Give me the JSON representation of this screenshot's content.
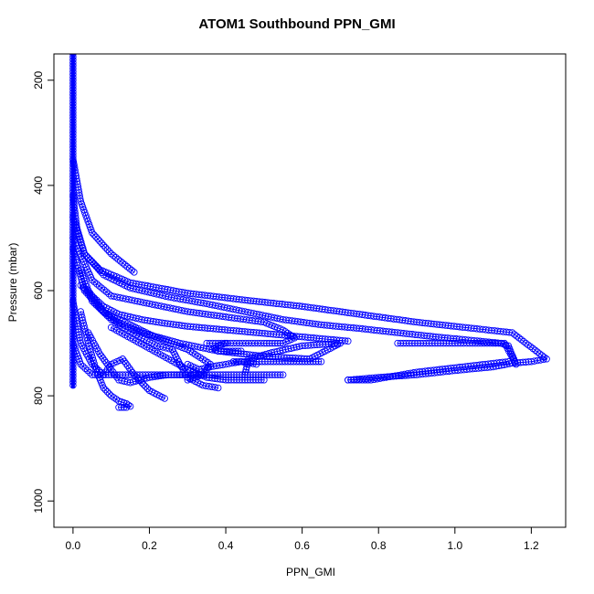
{
  "chart_data": {
    "type": "scatter",
    "title": "ATOM1 Southbound PPN_GMI",
    "xlabel": "PPN_GMI",
    "ylabel": "Pressure (mbar)",
    "xlim": [
      -0.05,
      1.29
    ],
    "ylim": [
      1050,
      150
    ],
    "y_reversed": true,
    "xticks": [
      0.0,
      0.2,
      0.4,
      0.6,
      0.8,
      1.0,
      1.2
    ],
    "xtick_labels": [
      "0.0",
      "0.2",
      "0.4",
      "0.6",
      "0.8",
      "1.0",
      "1.2"
    ],
    "yticks": [
      200,
      400,
      600,
      800,
      1000
    ],
    "ytick_labels": [
      "200",
      "400",
      "600",
      "800",
      "1000"
    ],
    "marker": "open-circle",
    "connect_points": true,
    "color": "#0000ff",
    "grid": false,
    "series": [
      {
        "x": [
          0.0,
          0.0,
          0.0,
          0.0,
          0.0,
          0.0,
          0.0
        ],
        "y": [
          150,
          250,
          350,
          450,
          550,
          650,
          780
        ]
      },
      {
        "x": [
          0.0,
          0.02,
          0.05,
          0.1,
          0.16
        ],
        "y": [
          350,
          430,
          490,
          530,
          565
        ]
      },
      {
        "x": [
          0.0,
          0.01,
          0.03,
          0.07,
          0.15,
          0.3,
          0.45,
          0.6,
          0.75,
          0.9,
          1.05,
          1.15,
          1.24,
          1.2,
          1.15,
          1.1,
          1.0,
          0.9,
          0.8,
          0.72
        ],
        "y": [
          420,
          480,
          530,
          560,
          585,
          605,
          618,
          630,
          645,
          660,
          672,
          680,
          730,
          735,
          738,
          745,
          752,
          760,
          765,
          770
        ]
      },
      {
        "x": [
          0.0,
          0.03,
          0.08,
          0.15,
          0.25,
          0.35,
          0.45,
          0.55,
          0.65,
          0.75,
          0.85,
          0.95,
          1.05,
          1.12,
          1.14,
          1.16,
          1.13,
          1.0,
          0.85
        ],
        "y": [
          460,
          530,
          570,
          595,
          612,
          625,
          640,
          655,
          665,
          672,
          680,
          688,
          695,
          700,
          705,
          740,
          700,
          700,
          700
        ]
      },
      {
        "x": [
          0.0,
          0.05,
          0.1,
          0.2,
          0.3,
          0.4,
          0.5,
          0.55,
          0.58,
          0.55,
          0.5,
          0.42,
          0.35
        ],
        "y": [
          500,
          580,
          610,
          625,
          640,
          650,
          660,
          675,
          690,
          700,
          700,
          700,
          700
        ]
      },
      {
        "x": [
          0.0,
          0.03,
          0.08,
          0.15,
          0.22,
          0.3,
          0.36,
          0.34,
          0.3
        ],
        "y": [
          520,
          600,
          640,
          665,
          690,
          712,
          740,
          760,
          770
        ]
      },
      {
        "x": [
          0.02,
          0.05,
          0.1,
          0.18,
          0.28,
          0.38,
          0.5,
          0.62,
          0.7,
          0.6,
          0.52,
          0.46,
          0.45
        ],
        "y": [
          560,
          620,
          655,
          680,
          700,
          715,
          725,
          730,
          700,
          705,
          718,
          730,
          760
        ]
      },
      {
        "x": [
          0.04,
          0.07,
          0.1,
          0.12,
          0.15,
          0.2,
          0.25,
          0.3,
          0.35,
          0.4,
          0.45,
          0.5,
          0.55
        ],
        "y": [
          680,
          720,
          750,
          770,
          775,
          765,
          760,
          760,
          760,
          760,
          760,
          760,
          760
        ]
      },
      {
        "x": [
          0.02,
          0.04,
          0.06,
          0.08,
          0.1,
          0.12,
          0.14,
          0.15,
          0.14,
          0.12
        ],
        "y": [
          640,
          700,
          750,
          785,
          800,
          810,
          815,
          820,
          822,
          822
        ]
      },
      {
        "x": [
          0.0,
          0.02,
          0.05,
          0.08,
          0.1,
          0.13,
          0.16,
          0.2,
          0.24
        ],
        "y": [
          620,
          700,
          740,
          760,
          740,
          730,
          760,
          790,
          805
        ]
      },
      {
        "x": [
          0.04,
          0.08,
          0.13,
          0.18,
          0.22,
          0.26,
          0.28,
          0.3,
          0.34,
          0.38
        ],
        "y": [
          600,
          640,
          670,
          690,
          705,
          712,
          740,
          765,
          780,
          785
        ]
      },
      {
        "x": [
          0.0,
          0.02,
          0.05,
          0.1,
          0.16,
          0.22,
          0.28,
          0.33
        ],
        "y": [
          700,
          740,
          760,
          760,
          760,
          760,
          760,
          760
        ]
      },
      {
        "x": [
          0.1,
          0.15,
          0.2,
          0.25,
          0.3,
          0.35,
          0.4,
          0.45,
          0.5
        ],
        "y": [
          670,
          690,
          710,
          730,
          750,
          765,
          770,
          770,
          770
        ]
      },
      {
        "x": [
          0.3,
          0.33,
          0.36,
          0.4,
          0.44,
          0.48
        ],
        "y": [
          740,
          750,
          745,
          740,
          735,
          740
        ]
      },
      {
        "x": [
          0.42,
          0.48,
          0.54,
          0.6,
          0.65
        ],
        "y": [
          735,
          735,
          735,
          735,
          735
        ]
      },
      {
        "x": [
          0.72,
          0.78,
          0.82,
          0.86,
          0.9,
          0.96,
          1.02,
          1.08,
          1.14
        ],
        "y": [
          770,
          770,
          765,
          760,
          755,
          750,
          745,
          740,
          735
        ]
      },
      {
        "x": [
          0.4,
          0.38,
          0.37,
          0.38,
          0.41,
          0.44
        ],
        "y": [
          700,
          705,
          710,
          715,
          715,
          715
        ]
      },
      {
        "x": [
          0.02,
          0.05,
          0.08,
          0.12,
          0.18,
          0.24,
          0.3,
          0.36,
          0.42,
          0.48,
          0.54,
          0.6,
          0.66,
          0.72
        ],
        "y": [
          590,
          610,
          630,
          645,
          655,
          662,
          668,
          672,
          676,
          680,
          684,
          688,
          692,
          696
        ]
      }
    ]
  }
}
